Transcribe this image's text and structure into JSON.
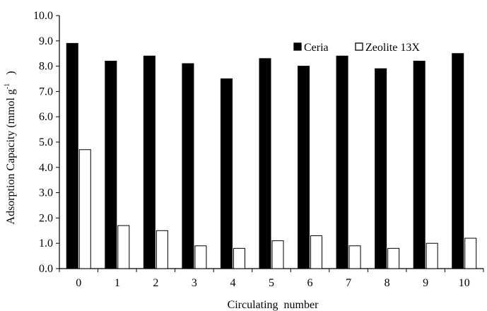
{
  "chart_data": {
    "type": "bar",
    "categories": [
      "0",
      "1",
      "2",
      "3",
      "4",
      "5",
      "6",
      "7",
      "8",
      "9",
      "10"
    ],
    "series": [
      {
        "name": "Ceria",
        "values": [
          8.9,
          8.2,
          8.4,
          8.1,
          7.5,
          8.3,
          8.0,
          8.4,
          7.9,
          8.2,
          8.5
        ],
        "color": "#000000",
        "stroke": "#000000"
      },
      {
        "name": "Zeolite 13X",
        "values": [
          4.7,
          1.7,
          1.5,
          0.9,
          0.8,
          1.1,
          1.3,
          0.9,
          0.8,
          1.0,
          1.2
        ],
        "color": "#ffffff",
        "stroke": "#000000"
      }
    ],
    "xlabel": "Circulating  number",
    "ylabel_main": "Adsorption Capacity (mmol g",
    "ylabel_sup": "-1",
    "ylabel_tail": ")",
    "ylim": [
      0,
      10
    ],
    "yticks": [
      "0.0",
      "1.0",
      "2.0",
      "3.0",
      "4.0",
      "5.0",
      "6.0",
      "7.0",
      "8.0",
      "9.0",
      "10.0"
    ],
    "grid": false,
    "legend_position": "top-right"
  }
}
